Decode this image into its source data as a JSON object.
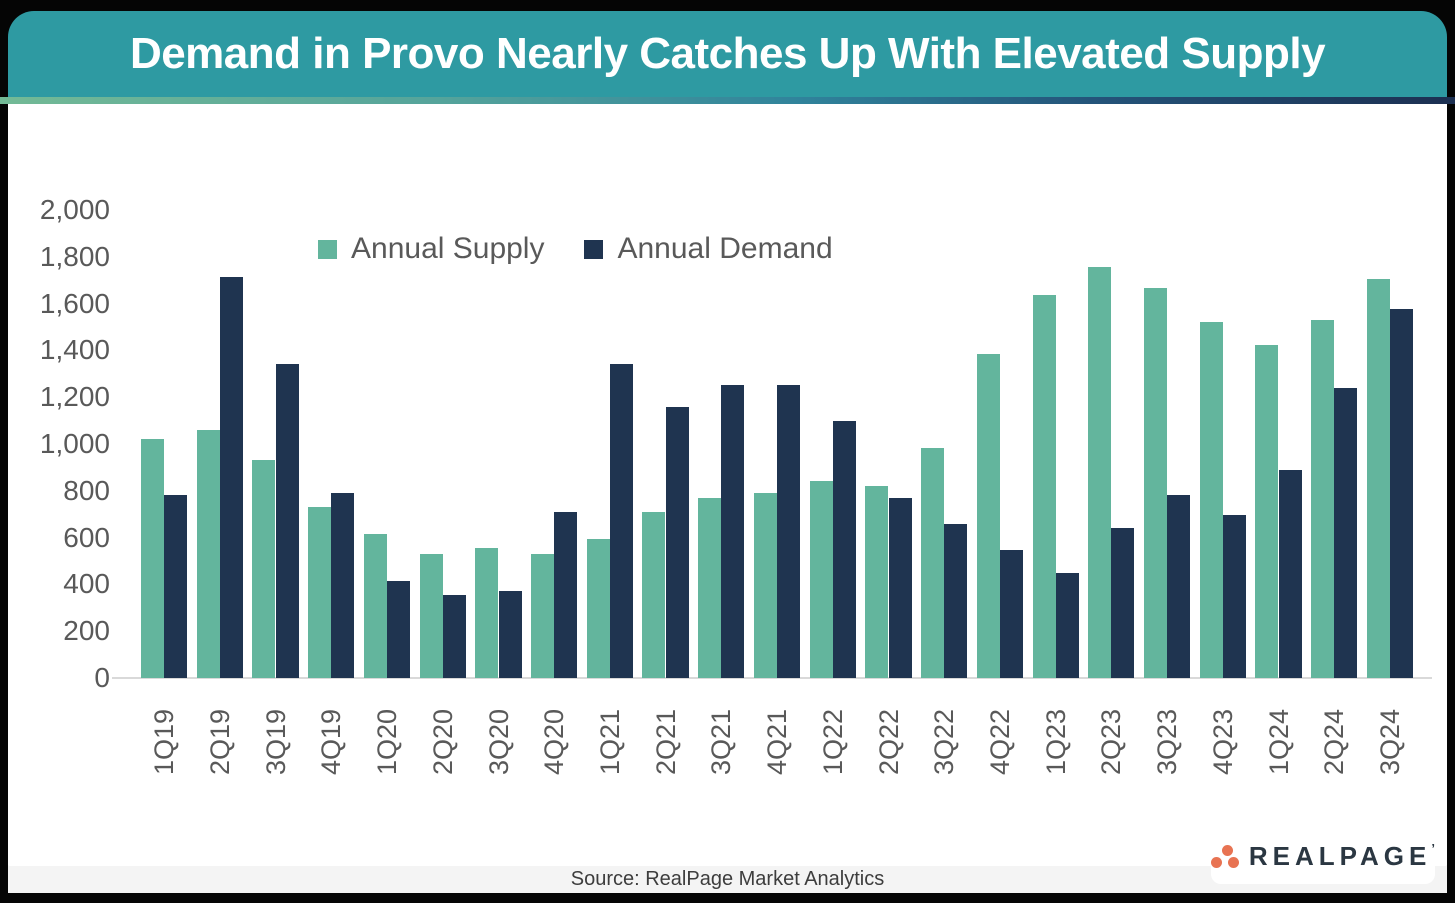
{
  "header": {
    "title": "Demand in Provo Nearly Catches Up With Elevated Supply",
    "banner_color": "#2e9aa2"
  },
  "accent_gradient": {
    "left": "#73ba96",
    "right": "#1c2f51"
  },
  "chart_data": {
    "type": "bar",
    "title": "Demand in Provo Nearly Catches Up With Elevated Supply",
    "categories": [
      "1Q19",
      "2Q19",
      "3Q19",
      "4Q19",
      "1Q20",
      "2Q20",
      "3Q20",
      "4Q20",
      "1Q21",
      "2Q21",
      "3Q21",
      "4Q21",
      "1Q22",
      "2Q22",
      "3Q22",
      "4Q22",
      "1Q23",
      "2Q23",
      "3Q23",
      "4Q23",
      "1Q24",
      "2Q24",
      "3Q24"
    ],
    "series": [
      {
        "name": "Annual Supply",
        "color": "#63b59d",
        "values": [
          1020,
          1060,
          930,
          730,
          615,
          530,
          555,
          530,
          595,
          710,
          770,
          790,
          840,
          820,
          985,
          1385,
          1635,
          1755,
          1665,
          1520,
          1425,
          1530,
          1705
        ]
      },
      {
        "name": "Annual Demand",
        "color": "#1f3450",
        "values": [
          780,
          1715,
          1340,
          790,
          415,
          355,
          370,
          710,
          1340,
          1160,
          1250,
          1250,
          1100,
          770,
          660,
          545,
          450,
          640,
          780,
          695,
          890,
          1240,
          1575
        ]
      }
    ],
    "xlabel": "",
    "ylabel": "",
    "ylim": [
      0,
      2000
    ],
    "ytick_step": 200,
    "ytick_labels": [
      "0",
      "200",
      "400",
      "600",
      "800",
      "1,000",
      "1,200",
      "1,400",
      "1,600",
      "1,800",
      "2,000"
    ],
    "grid": false,
    "legend_position": "top-center",
    "axis_text_color": "#595959"
  },
  "footer": {
    "source": "Source: RealPage Market Analytics"
  },
  "logo": {
    "wordmark": "REALPAGE",
    "trademark": "’",
    "dots_color": "#e87352",
    "text_color": "#2b3742"
  }
}
